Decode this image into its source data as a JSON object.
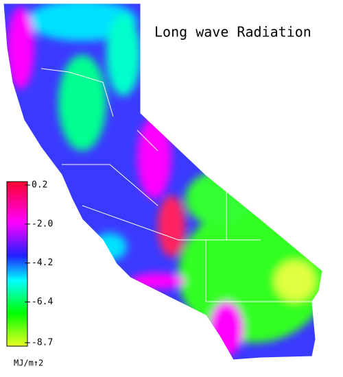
{
  "title": "Long wave Radiation",
  "colorbar": {
    "lim": [
      -8.7,
      0.2
    ],
    "ticks": [
      0.2,
      {
        "value": -2.0,
        "label": "-2.0"
      },
      -4.2,
      -6.4,
      -8.7
    ],
    "unit": "MJ/m↑2"
  }
}
